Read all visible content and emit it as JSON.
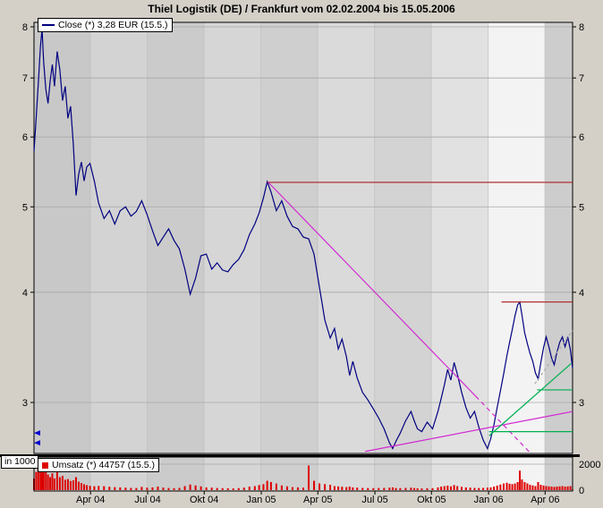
{
  "window": {
    "title": "Thiel Logistik (DE) / Frankfurt vom 02.02.2004 bis 15.05.2006"
  },
  "legend": {
    "close_label": "Close (*) 3,28 EUR (15.5.)",
    "volume_label": "Umsatz (*) 44757 (15.5.)",
    "volume_axis_unit": "in 1000"
  },
  "colors": {
    "close_line": "#000080",
    "volume_bar": "#dd0000",
    "resistance_red": "#b03030",
    "trend_magenta": "#d22ad2",
    "trend_green": "#00b050",
    "grid": "#a8a8a8",
    "band_edge": "#b4b4b4",
    "axis": "#000000",
    "marker_blue": "#0000cc"
  },
  "chart_data": {
    "type": "line",
    "title": "Thiel Logistik (DE) / Frankfurt vom 02.02.2004 bis 15.05.2006",
    "x_range": [
      "02.02.2004",
      "15.05.2006"
    ],
    "y_scale": "log",
    "ylabel": "EUR",
    "last_close_eur": "3,28",
    "last_close_date": "15.5.",
    "last_volume": "44757",
    "price_ticks": [
      8,
      7,
      6,
      5,
      4,
      3
    ],
    "volume_ticks": [
      {
        "label": "2000",
        "value": 2000
      },
      {
        "label": "0",
        "value": 0
      }
    ],
    "x_ticks": [
      {
        "label": "Apr 04",
        "t": 0.105
      },
      {
        "label": "Jul 04",
        "t": 0.211
      },
      {
        "label": "Okt 04",
        "t": 0.316
      },
      {
        "label": "Jan 05",
        "t": 0.422
      },
      {
        "label": "Apr 05",
        "t": 0.527
      },
      {
        "label": "Jul 05",
        "t": 0.633
      },
      {
        "label": "Okt 05",
        "t": 0.738
      },
      {
        "label": "Jan 06",
        "t": 0.844
      },
      {
        "label": "Apr 06",
        "t": 0.949
      }
    ],
    "bands": [
      {
        "t1": 0.0,
        "t2": 0.105,
        "color": "#c8c8c8"
      },
      {
        "t1": 0.105,
        "t2": 0.211,
        "color": "#d3d3d3"
      },
      {
        "t1": 0.211,
        "t2": 0.316,
        "color": "#cbcbcb"
      },
      {
        "t1": 0.316,
        "t2": 0.422,
        "color": "#d6d6d6"
      },
      {
        "t1": 0.422,
        "t2": 0.527,
        "color": "#cfcfcf"
      },
      {
        "t1": 0.527,
        "t2": 0.633,
        "color": "#dadada"
      },
      {
        "t1": 0.633,
        "t2": 0.738,
        "color": "#d3d3d3"
      },
      {
        "t1": 0.738,
        "t2": 0.844,
        "color": "#e1e1e1"
      },
      {
        "t1": 0.844,
        "t2": 0.949,
        "color": "#f3f3f3"
      },
      {
        "t1": 0.949,
        "t2": 1.0,
        "color": "#cdcdcd"
      }
    ],
    "left_markers": [
      2.77,
      2.7
    ],
    "overlays": [
      {
        "id": "resistance-high",
        "type": "hline",
        "price": 5.33,
        "t1": 0.433,
        "t2": 1.0,
        "color_key": "resistance_red",
        "dash": ""
      },
      {
        "id": "resistance-recent",
        "type": "hline",
        "price": 3.9,
        "t1": 0.868,
        "t2": 1.0,
        "color_key": "resistance_red",
        "dash": ""
      },
      {
        "id": "downtrend-solid",
        "type": "line",
        "t1": 0.435,
        "p1": 5.33,
        "t2": 0.82,
        "p2": 3.05,
        "color_key": "trend_magenta",
        "dash": ""
      },
      {
        "id": "downtrend-dashed",
        "type": "line",
        "t1": 0.82,
        "p1": 3.05,
        "t2": 0.924,
        "p2": 2.62,
        "color_key": "trend_magenta",
        "dash": "5,4"
      },
      {
        "id": "support-rising",
        "type": "line",
        "t1": 0.615,
        "p1": 2.64,
        "t2": 1.0,
        "p2": 2.93,
        "color_key": "trend_magenta",
        "dash": ""
      },
      {
        "id": "uptrend-green",
        "type": "line",
        "t1": 0.845,
        "p1": 2.75,
        "t2": 0.997,
        "p2": 3.32,
        "color_key": "trend_green",
        "dash": ""
      },
      {
        "id": "support-green-low",
        "type": "hline",
        "price": 2.78,
        "t1": 0.845,
        "t2": 1.0,
        "color_key": "trend_green",
        "dash": ""
      },
      {
        "id": "support-green-mid",
        "type": "hline",
        "price": 3.1,
        "t1": 0.934,
        "t2": 1.0,
        "color_key": "trend_green",
        "dash": ""
      },
      {
        "id": "trend-dashed-short",
        "type": "line",
        "t1": 0.93,
        "p1": 3.15,
        "t2": 1.0,
        "p2": 3.62,
        "color_key": "grid",
        "dash": "3,3"
      }
    ],
    "columns": [
      "t",
      "close_eur",
      "volume_thousands"
    ],
    "rows": [
      [
        0.0,
        5.78,
        900
      ],
      [
        0.004,
        6.3,
        1400
      ],
      [
        0.008,
        6.9,
        1900
      ],
      [
        0.012,
        7.6,
        2200
      ],
      [
        0.015,
        7.95,
        2250
      ],
      [
        0.018,
        7.3,
        1800
      ],
      [
        0.022,
        6.8,
        1400
      ],
      [
        0.026,
        6.55,
        1200
      ],
      [
        0.03,
        6.95,
        1000
      ],
      [
        0.034,
        7.25,
        1300
      ],
      [
        0.038,
        6.85,
        900
      ],
      [
        0.043,
        7.5,
        1600
      ],
      [
        0.048,
        7.15,
        1000
      ],
      [
        0.053,
        6.6,
        1100
      ],
      [
        0.058,
        6.85,
        800
      ],
      [
        0.063,
        6.3,
        850
      ],
      [
        0.068,
        6.5,
        700
      ],
      [
        0.073,
        5.9,
        750
      ],
      [
        0.078,
        5.15,
        1000
      ],
      [
        0.083,
        5.45,
        650
      ],
      [
        0.088,
        5.62,
        550
      ],
      [
        0.093,
        5.35,
        450
      ],
      [
        0.098,
        5.55,
        380
      ],
      [
        0.104,
        5.6,
        330
      ],
      [
        0.112,
        5.35,
        300
      ],
      [
        0.12,
        5.05,
        320
      ],
      [
        0.13,
        4.85,
        300
      ],
      [
        0.14,
        4.95,
        260
      ],
      [
        0.15,
        4.78,
        230
      ],
      [
        0.16,
        4.95,
        210
      ],
      [
        0.17,
        5.0,
        190
      ],
      [
        0.18,
        4.88,
        170
      ],
      [
        0.19,
        4.94,
        160
      ],
      [
        0.2,
        5.08,
        250
      ],
      [
        0.21,
        4.9,
        190
      ],
      [
        0.22,
        4.7,
        210
      ],
      [
        0.23,
        4.52,
        270
      ],
      [
        0.24,
        4.62,
        190
      ],
      [
        0.25,
        4.72,
        160
      ],
      [
        0.26,
        4.58,
        150
      ],
      [
        0.27,
        4.48,
        170
      ],
      [
        0.28,
        4.25,
        310
      ],
      [
        0.29,
        3.98,
        430
      ],
      [
        0.3,
        4.15,
        360
      ],
      [
        0.31,
        4.4,
        290
      ],
      [
        0.32,
        4.42,
        210
      ],
      [
        0.33,
        4.25,
        190
      ],
      [
        0.34,
        4.32,
        160
      ],
      [
        0.35,
        4.24,
        150
      ],
      [
        0.36,
        4.22,
        140
      ],
      [
        0.37,
        4.3,
        130
      ],
      [
        0.38,
        4.36,
        150
      ],
      [
        0.39,
        4.47,
        190
      ],
      [
        0.4,
        4.65,
        270
      ],
      [
        0.41,
        4.78,
        310
      ],
      [
        0.418,
        4.92,
        390
      ],
      [
        0.426,
        5.12,
        460
      ],
      [
        0.433,
        5.34,
        720
      ],
      [
        0.44,
        5.2,
        620
      ],
      [
        0.45,
        4.95,
        510
      ],
      [
        0.46,
        5.08,
        360
      ],
      [
        0.47,
        4.88,
        290
      ],
      [
        0.48,
        4.75,
        230
      ],
      [
        0.49,
        4.72,
        210
      ],
      [
        0.5,
        4.62,
        190
      ],
      [
        0.51,
        4.6,
        1900
      ],
      [
        0.52,
        4.42,
        720
      ],
      [
        0.53,
        4.05,
        520
      ],
      [
        0.54,
        3.72,
        460
      ],
      [
        0.55,
        3.55,
        410
      ],
      [
        0.558,
        3.64,
        310
      ],
      [
        0.565,
        3.45,
        290
      ],
      [
        0.572,
        3.54,
        260
      ],
      [
        0.58,
        3.38,
        230
      ],
      [
        0.586,
        3.22,
        270
      ],
      [
        0.592,
        3.34,
        210
      ],
      [
        0.6,
        3.2,
        190
      ],
      [
        0.61,
        3.08,
        170
      ],
      [
        0.62,
        3.02,
        160
      ],
      [
        0.63,
        2.95,
        150
      ],
      [
        0.64,
        2.88,
        160
      ],
      [
        0.65,
        2.8,
        170
      ],
      [
        0.66,
        2.7,
        190
      ],
      [
        0.666,
        2.66,
        210
      ],
      [
        0.672,
        2.71,
        160
      ],
      [
        0.68,
        2.77,
        150
      ],
      [
        0.69,
        2.86,
        170
      ],
      [
        0.7,
        2.93,
        190
      ],
      [
        0.706,
        2.86,
        160
      ],
      [
        0.712,
        2.8,
        140
      ],
      [
        0.72,
        2.78,
        130
      ],
      [
        0.73,
        2.85,
        140
      ],
      [
        0.74,
        2.8,
        150
      ],
      [
        0.75,
        2.93,
        210
      ],
      [
        0.756,
        3.03,
        270
      ],
      [
        0.762,
        3.14,
        310
      ],
      [
        0.768,
        3.27,
        350
      ],
      [
        0.774,
        3.18,
        290
      ],
      [
        0.78,
        3.33,
        390
      ],
      [
        0.786,
        3.23,
        310
      ],
      [
        0.794,
        3.08,
        250
      ],
      [
        0.802,
        2.96,
        210
      ],
      [
        0.81,
        2.88,
        190
      ],
      [
        0.818,
        2.93,
        170
      ],
      [
        0.826,
        2.81,
        160
      ],
      [
        0.834,
        2.72,
        170
      ],
      [
        0.842,
        2.66,
        190
      ],
      [
        0.848,
        2.73,
        210
      ],
      [
        0.854,
        2.83,
        270
      ],
      [
        0.86,
        2.96,
        350
      ],
      [
        0.866,
        3.09,
        430
      ],
      [
        0.872,
        3.23,
        510
      ],
      [
        0.878,
        3.39,
        570
      ],
      [
        0.883,
        3.51,
        490
      ],
      [
        0.888,
        3.63,
        460
      ],
      [
        0.893,
        3.76,
        510
      ],
      [
        0.898,
        3.87,
        620
      ],
      [
        0.902,
        3.9,
        1500
      ],
      [
        0.906,
        3.77,
        820
      ],
      [
        0.911,
        3.6,
        620
      ],
      [
        0.916,
        3.5,
        520
      ],
      [
        0.921,
        3.41,
        410
      ],
      [
        0.926,
        3.34,
        360
      ],
      [
        0.931,
        3.24,
        310
      ],
      [
        0.936,
        3.19,
        620
      ],
      [
        0.941,
        3.33,
        410
      ],
      [
        0.946,
        3.46,
        360
      ],
      [
        0.951,
        3.56,
        310
      ],
      [
        0.956,
        3.47,
        290
      ],
      [
        0.961,
        3.37,
        270
      ],
      [
        0.966,
        3.31,
        250
      ],
      [
        0.971,
        3.42,
        270
      ],
      [
        0.976,
        3.51,
        290
      ],
      [
        0.981,
        3.56,
        310
      ],
      [
        0.986,
        3.47,
        270
      ],
      [
        0.991,
        3.56,
        290
      ],
      [
        0.996,
        3.44,
        310
      ],
      [
        1.0,
        3.28,
        45
      ]
    ]
  }
}
